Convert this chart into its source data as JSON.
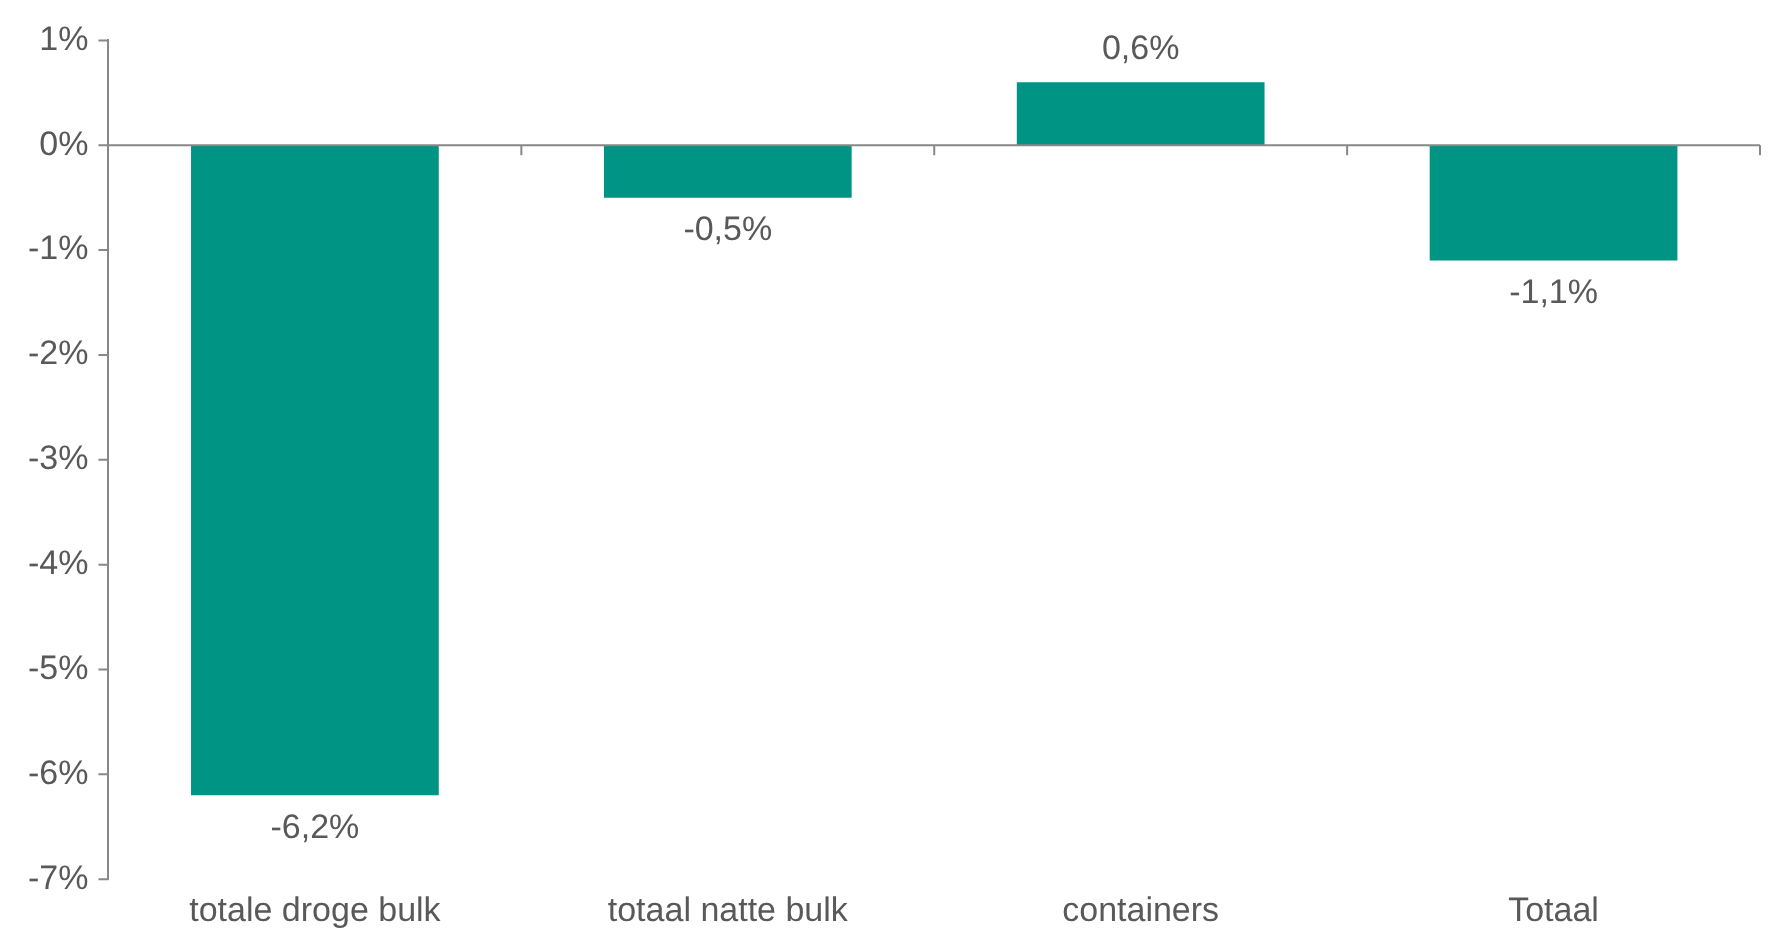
{
  "chart_data": {
    "type": "bar",
    "categories": [
      "totale droge bulk",
      "totaal natte bulk",
      "containers",
      "Totaal"
    ],
    "values": [
      -6.2,
      -0.5,
      0.6,
      -1.1
    ],
    "value_labels": [
      "-6,2%",
      "-0,5%",
      "0,6%",
      "-1,1%"
    ],
    "color": "#009484",
    "ylim": [
      -7,
      1
    ],
    "yticks": [
      {
        "value": -7,
        "label": "-7%"
      },
      {
        "value": -6,
        "label": "-6%"
      },
      {
        "value": -5,
        "label": "-5%"
      },
      {
        "value": -4,
        "label": "-4%"
      },
      {
        "value": -3,
        "label": "-3%"
      },
      {
        "value": -2,
        "label": "-2%"
      },
      {
        "value": -1,
        "label": "-1%"
      },
      {
        "value": 0,
        "label": "0%"
      },
      {
        "value": 1,
        "label": "1%"
      }
    ],
    "legend": false
  }
}
